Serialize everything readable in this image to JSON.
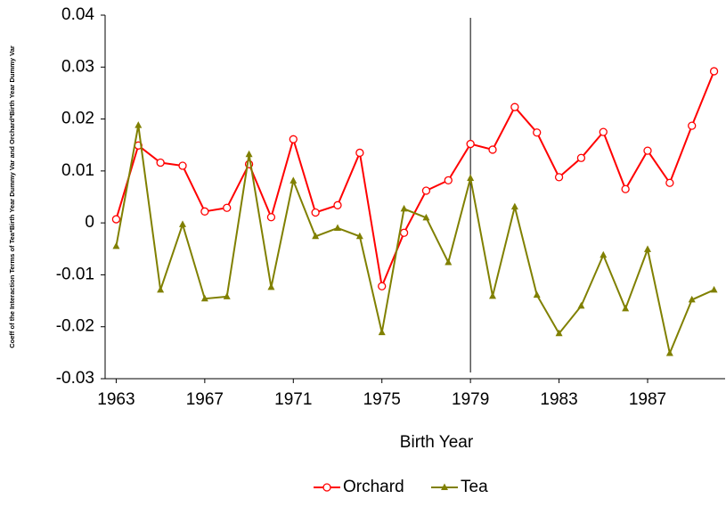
{
  "chart_data": {
    "type": "line",
    "x_label": "Birth Year",
    "y_label": "Coeff of the Interaction Terms of Tea*Birth Year Dummy Var and Orchard*Birth Year Dummy Var",
    "x": [
      1963,
      1964,
      1965,
      1966,
      1967,
      1968,
      1969,
      1970,
      1971,
      1972,
      1973,
      1974,
      1975,
      1976,
      1977,
      1978,
      1979,
      1980,
      1981,
      1982,
      1983,
      1984,
      1985,
      1986,
      1987,
      1988,
      1989,
      1990
    ],
    "series": [
      {
        "name": "Orchard",
        "color": "#ff0000",
        "marker": "circle",
        "values": [
          0.0007,
          0.0149,
          0.0116,
          0.011,
          0.0022,
          0.0029,
          0.0113,
          0.0011,
          0.0161,
          0.002,
          0.0034,
          0.0135,
          -0.0122,
          -0.0019,
          0.0062,
          0.0082,
          0.0152,
          0.0141,
          0.0223,
          0.0174,
          0.0088,
          0.0125,
          0.0175,
          0.0065,
          0.0139,
          0.0077,
          0.0187,
          0.0292
        ]
      },
      {
        "name": "Tea",
        "color": "#808000",
        "marker": "triangle",
        "values": [
          -0.0045,
          0.0188,
          -0.0129,
          -0.0003,
          -0.0146,
          -0.0142,
          0.0132,
          -0.0124,
          0.0081,
          -0.0026,
          -0.001,
          -0.0026,
          -0.0211,
          0.0027,
          0.001,
          -0.0076,
          0.0086,
          -0.0141,
          0.0031,
          -0.0139,
          -0.0213,
          -0.016,
          -0.0062,
          -0.0165,
          -0.0051,
          -0.0251,
          -0.0148,
          -0.0129
        ]
      }
    ],
    "xlim": [
      1962.5,
      1990.5
    ],
    "xticks": [
      1963,
      1967,
      1971,
      1975,
      1979,
      1983,
      1987
    ],
    "ylim": [
      -0.03,
      0.04
    ],
    "yticks": [
      -0.03,
      -0.02,
      -0.01,
      0,
      0.01,
      0.02,
      0.03,
      0.04
    ],
    "vline": 1979,
    "legend": "bottom"
  }
}
